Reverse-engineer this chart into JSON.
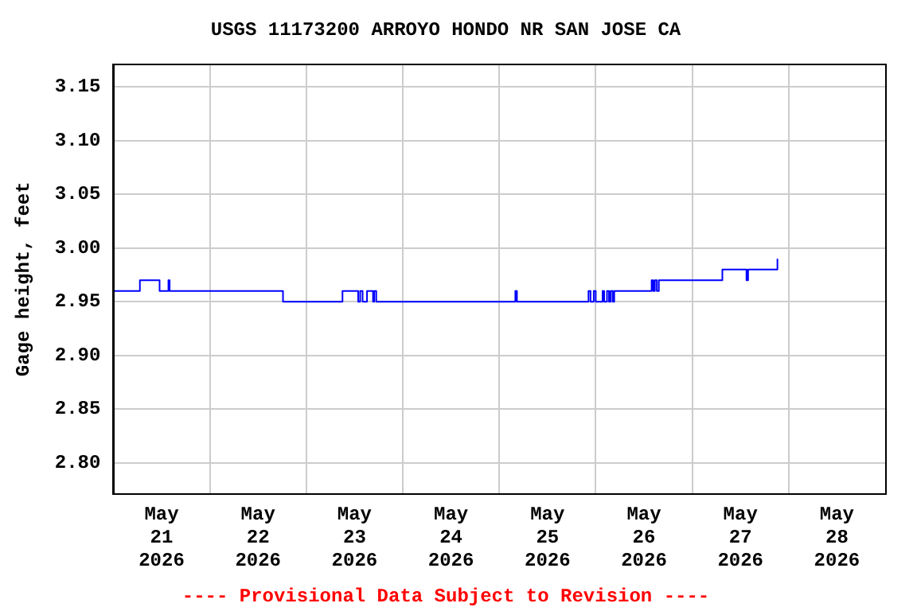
{
  "chart_data": {
    "type": "step",
    "title": "USGS 11173200 ARROYO HONDO NR SAN JOSE CA",
    "ylabel": "Gage height, feet",
    "annotations": [
      "---- Provisional Data Subject to Revision ----"
    ],
    "x": [
      "2026-05-21T00:00",
      "2026-05-21T06:36",
      "2026-05-21T11:30",
      "2026-05-21T13:42",
      "2026-05-21T14:00",
      "2026-05-22T18:12",
      "2026-05-23T09:00",
      "2026-05-23T12:54",
      "2026-05-23T13:24",
      "2026-05-23T14:00",
      "2026-05-23T15:06",
      "2026-05-23T16:36",
      "2026-05-23T16:54",
      "2026-05-23T17:24",
      "2026-05-25T04:00",
      "2026-05-25T04:24",
      "2026-05-25T22:12",
      "2026-05-25T22:42",
      "2026-05-25T23:30",
      "2026-05-26T00:00",
      "2026-05-26T01:42",
      "2026-05-26T02:06",
      "2026-05-26T02:48",
      "2026-05-26T03:18",
      "2026-05-26T03:42",
      "2026-05-26T04:12",
      "2026-05-26T04:36",
      "2026-05-26T13:54",
      "2026-05-26T14:18",
      "2026-05-26T14:42",
      "2026-05-26T15:12",
      "2026-05-26T15:42",
      "2026-05-27T07:30",
      "2026-05-27T13:30",
      "2026-05-27T13:54",
      "2026-05-27T21:12"
    ],
    "series": [
      {
        "color": "#0000ff",
        "values": [
          2.96,
          2.97,
          2.96,
          2.97,
          2.96,
          2.95,
          2.96,
          2.95,
          2.96,
          2.95,
          2.96,
          2.95,
          2.96,
          2.95,
          2.96,
          2.95,
          2.96,
          2.95,
          2.96,
          2.95,
          2.96,
          2.95,
          2.96,
          2.95,
          2.96,
          2.95,
          2.96,
          2.97,
          2.96,
          2.97,
          2.96,
          2.97,
          2.98,
          2.97,
          2.98,
          2.99
        ]
      }
    ],
    "xlim": [
      "2026-05-21T00:00",
      "2026-05-29T00:00"
    ],
    "xticks": [
      {
        "value": "2026-05-21T12:00",
        "label": "May 21 2026"
      },
      {
        "value": "2026-05-22T00:00",
        "label": null
      },
      {
        "value": "2026-05-22T12:00",
        "label": "May 22 2026"
      },
      {
        "value": "2026-05-23T00:00",
        "label": null
      },
      {
        "value": "2026-05-23T12:00",
        "label": "May 23 2026"
      },
      {
        "value": "2026-05-24T00:00",
        "label": null
      },
      {
        "value": "2026-05-24T12:00",
        "label": "May 24 2026"
      },
      {
        "value": "2026-05-25T00:00",
        "label": null
      },
      {
        "value": "2026-05-25T12:00",
        "label": "May 25 2026"
      },
      {
        "value": "2026-05-26T00:00",
        "label": null
      },
      {
        "value": "2026-05-26T12:00",
        "label": "May 26 2026"
      },
      {
        "value": "2026-05-27T00:00",
        "label": null
      },
      {
        "value": "2026-05-27T12:00",
        "label": "May 27 2026"
      },
      {
        "value": "2026-05-28T00:00",
        "label": null
      },
      {
        "value": "2026-05-28T12:00",
        "label": "May 28 2026"
      }
    ],
    "ylim": [
      2.771,
      3.171
    ],
    "yticks": [
      {
        "value": 2.8,
        "label": "2.80"
      },
      {
        "value": 2.85,
        "label": "2.85"
      },
      {
        "value": 2.9,
        "label": "2.90"
      },
      {
        "value": 2.95,
        "label": "2.95"
      },
      {
        "value": 3.0,
        "label": "3.00"
      },
      {
        "value": 3.05,
        "label": "3.05"
      },
      {
        "value": 3.1,
        "label": "3.10"
      },
      {
        "value": 3.15,
        "label": "3.15"
      }
    ],
    "grid": true,
    "legend": false,
    "marker": "none",
    "line_style": "solid"
  }
}
